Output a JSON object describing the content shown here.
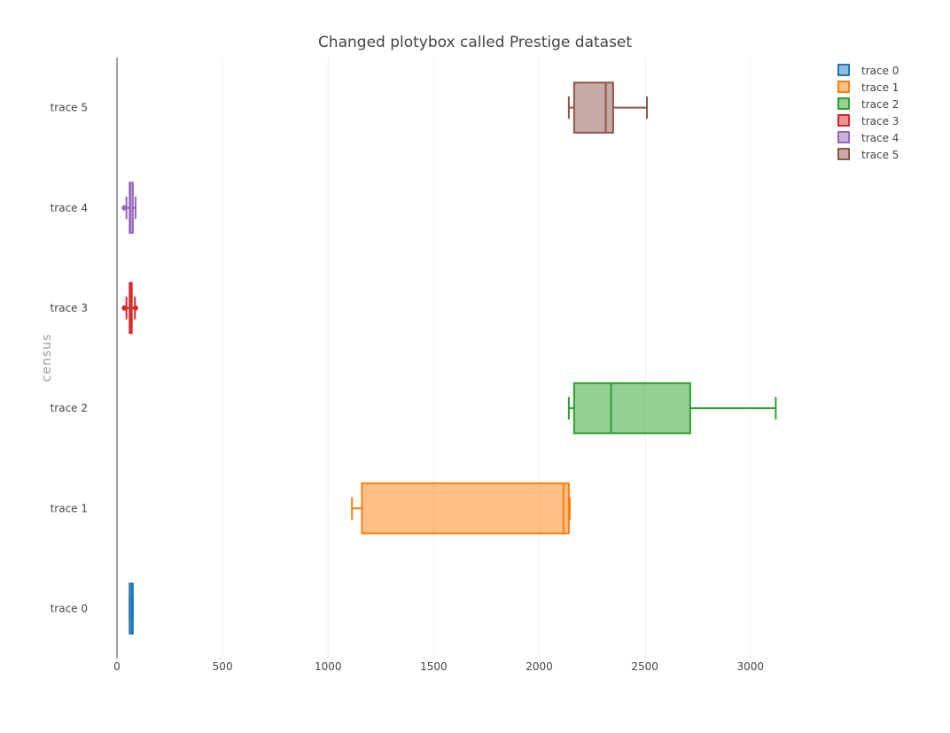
{
  "chart_data": {
    "type": "box",
    "orientation": "horizontal",
    "title": "Changed plotybox called Prestige dataset",
    "xlabel": "",
    "ylabel": "census",
    "xlim": [
      0,
      3450
    ],
    "xticks": [
      0,
      500,
      1000,
      1500,
      2000,
      2500,
      3000
    ],
    "grid": true,
    "legend_position": "top-right",
    "series": [
      {
        "name": "trace 0",
        "color": "#1f77b4",
        "min": 60,
        "q1": 60,
        "median": 70,
        "q3": 75,
        "max": 75,
        "outliers": []
      },
      {
        "name": "trace 1",
        "color": "#ff7f0e",
        "min": 1113,
        "q1": 1160,
        "median": 2115,
        "q3": 2140,
        "max": 2145,
        "outliers": []
      },
      {
        "name": "trace 2",
        "color": "#2ca02c",
        "min": 2140,
        "q1": 2165,
        "median": 2340,
        "q3": 2715,
        "max": 3120,
        "outliers": []
      },
      {
        "name": "trace 3",
        "color": "#d62728",
        "min": 45,
        "q1": 60,
        "median": 62,
        "q3": 70,
        "max": 85,
        "outliers": [
          35,
          88
        ]
      },
      {
        "name": "trace 4",
        "color": "#9467bd",
        "min": 45,
        "q1": 60,
        "median": 63,
        "q3": 75,
        "max": 88,
        "outliers": [
          35
        ]
      },
      {
        "name": "trace 5",
        "color": "#8c564b",
        "min": 2140,
        "q1": 2165,
        "median": 2315,
        "q3": 2350,
        "max": 2510,
        "outliers": []
      }
    ]
  }
}
